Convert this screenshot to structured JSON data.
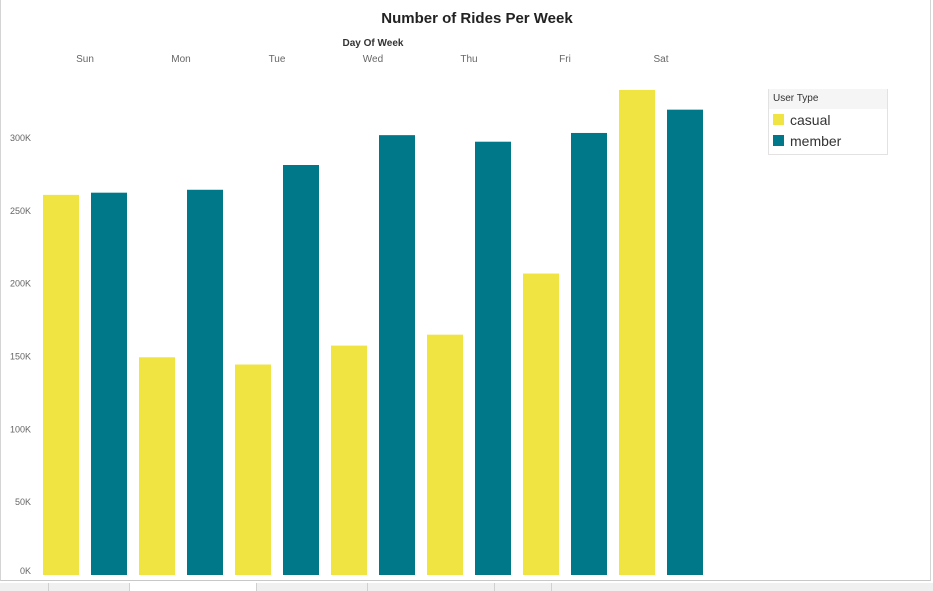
{
  "chart_data": {
    "type": "bar",
    "title": "Number of Rides Per Week",
    "xlabel": "Day Of Week",
    "ylabel": "",
    "categories": [
      "Sun",
      "Mon",
      "Tue",
      "Wed",
      "Thu",
      "Fri",
      "Sat"
    ],
    "series": [
      {
        "name": "casual",
        "color": "#f0e442",
        "values": [
          261000,
          149500,
          144500,
          157500,
          165000,
          207000,
          333000
        ]
      },
      {
        "name": "member",
        "color": "#00788a",
        "values": [
          262500,
          264500,
          281500,
          302000,
          297500,
          303500,
          319500
        ]
      }
    ],
    "ylim": [
      0,
      333000
    ],
    "y_ticks": [
      {
        "value": 0,
        "label": "0K"
      },
      {
        "value": 50000,
        "label": "50K"
      },
      {
        "value": 100000,
        "label": "100K"
      },
      {
        "value": 150000,
        "label": "150K"
      },
      {
        "value": 200000,
        "label": "200K"
      },
      {
        "value": 250000,
        "label": "250K"
      },
      {
        "value": 300000,
        "label": "300K"
      }
    ],
    "x_axis_position": "top",
    "grid": false,
    "legend": {
      "title": "User Type",
      "placement": "right"
    }
  }
}
